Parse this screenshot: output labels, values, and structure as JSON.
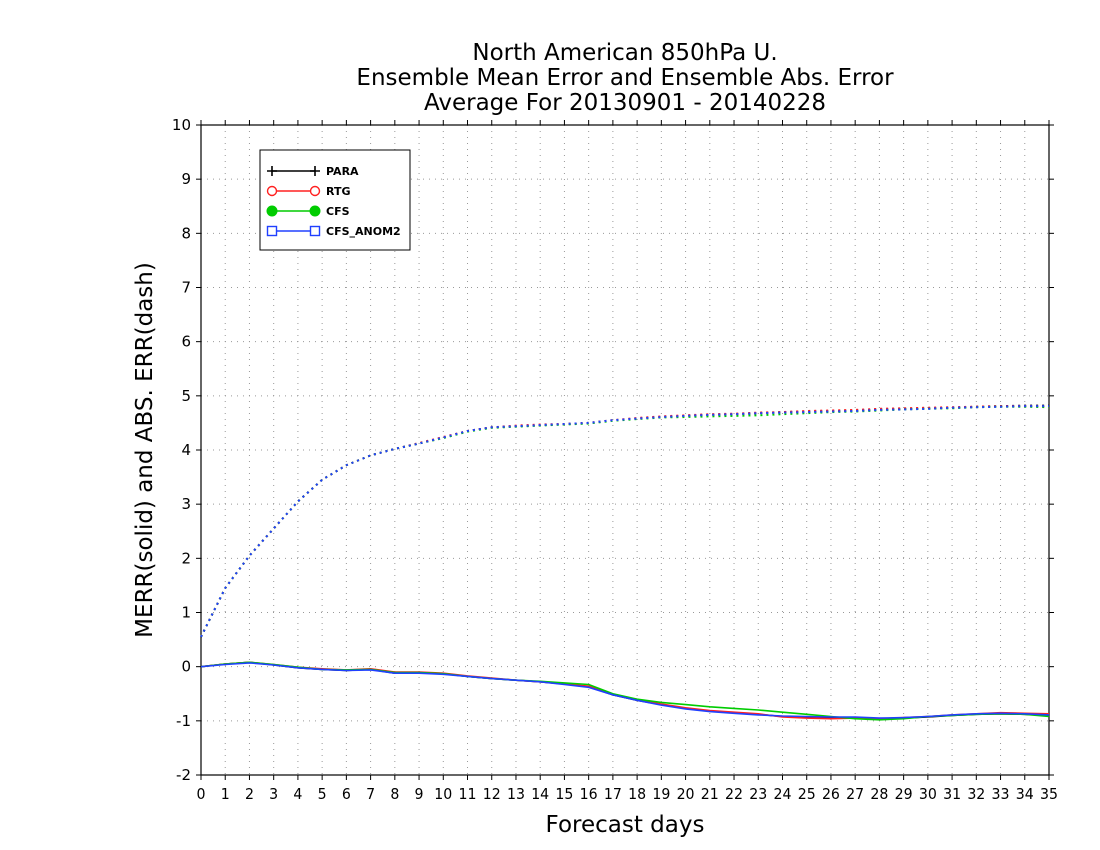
{
  "chart_data": {
    "type": "line",
    "title": [
      "North American 850hPa U.",
      "Ensemble Mean Error and Ensemble Abs. Error",
      "Average For 20130901 - 20140228"
    ],
    "xlabel": "Forecast days",
    "ylabel": "MERR(solid) and ABS. ERR(dash)",
    "xlim": [
      0,
      35
    ],
    "ylim": [
      -2,
      10
    ],
    "xticks": [
      0,
      1,
      2,
      3,
      4,
      5,
      6,
      7,
      8,
      9,
      10,
      11,
      12,
      13,
      14,
      15,
      16,
      17,
      18,
      19,
      20,
      21,
      22,
      23,
      24,
      25,
      26,
      27,
      28,
      29,
      30,
      31,
      32,
      33,
      34,
      35
    ],
    "yticks": [
      -2,
      -1,
      0,
      1,
      2,
      3,
      4,
      5,
      6,
      7,
      8,
      9,
      10
    ],
    "grid": true,
    "legend_position": "top-left",
    "x": [
      0,
      1,
      2,
      3,
      4,
      5,
      6,
      7,
      8,
      9,
      10,
      11,
      12,
      13,
      14,
      15,
      16,
      17,
      18,
      19,
      20,
      21,
      22,
      23,
      24,
      25,
      26,
      27,
      28,
      29,
      30,
      31,
      32,
      33,
      34,
      35
    ],
    "series": [
      {
        "name": "PARA",
        "color": "#000000",
        "marker": "plus",
        "merr": [
          0.0,
          0.05,
          0.08,
          0.03,
          -0.02,
          -0.05,
          -0.07,
          -0.05,
          -0.12,
          -0.11,
          -0.13,
          -0.18,
          -0.22,
          -0.25,
          -0.28,
          -0.32,
          -0.37,
          -0.52,
          -0.62,
          -0.7,
          -0.77,
          -0.82,
          -0.85,
          -0.88,
          -0.92,
          -0.93,
          -0.95,
          -0.95,
          -0.97,
          -0.95,
          -0.93,
          -0.9,
          -0.88,
          -0.87,
          -0.88,
          -0.9
        ],
        "abserr": [
          0.55,
          1.45,
          2.05,
          2.55,
          3.05,
          3.45,
          3.72,
          3.9,
          4.02,
          4.12,
          4.23,
          4.35,
          4.42,
          4.44,
          4.46,
          4.48,
          4.5,
          4.55,
          4.58,
          4.61,
          4.63,
          4.65,
          4.66,
          4.68,
          4.7,
          4.71,
          4.72,
          4.73,
          4.75,
          4.76,
          4.77,
          4.78,
          4.8,
          4.81,
          4.82,
          4.82
        ]
      },
      {
        "name": "RTG",
        "color": "#ff2020",
        "marker": "circle",
        "merr": [
          0.0,
          0.05,
          0.08,
          0.04,
          -0.01,
          -0.04,
          -0.06,
          -0.04,
          -0.1,
          -0.1,
          -0.12,
          -0.17,
          -0.21,
          -0.25,
          -0.28,
          -0.32,
          -0.36,
          -0.51,
          -0.61,
          -0.69,
          -0.76,
          -0.81,
          -0.84,
          -0.87,
          -0.93,
          -0.95,
          -0.96,
          -0.95,
          -0.96,
          -0.94,
          -0.92,
          -0.89,
          -0.87,
          -0.85,
          -0.86,
          -0.87
        ],
        "abserr": [
          0.55,
          1.45,
          2.05,
          2.55,
          3.05,
          3.45,
          3.72,
          3.9,
          4.02,
          4.13,
          4.24,
          4.35,
          4.42,
          4.45,
          4.47,
          4.48,
          4.5,
          4.55,
          4.59,
          4.62,
          4.64,
          4.66,
          4.67,
          4.69,
          4.7,
          4.72,
          4.73,
          4.74,
          4.76,
          4.77,
          4.78,
          4.79,
          4.8,
          4.81,
          4.81,
          4.8
        ]
      },
      {
        "name": "CFS",
        "color": "#00cc00",
        "marker": "filled-circle",
        "merr": [
          0.0,
          0.05,
          0.08,
          0.04,
          -0.01,
          -0.05,
          -0.06,
          -0.05,
          -0.11,
          -0.11,
          -0.13,
          -0.18,
          -0.22,
          -0.25,
          -0.27,
          -0.3,
          -0.33,
          -0.5,
          -0.6,
          -0.66,
          -0.7,
          -0.74,
          -0.77,
          -0.8,
          -0.84,
          -0.88,
          -0.92,
          -0.96,
          -0.98,
          -0.96,
          -0.92,
          -0.9,
          -0.88,
          -0.87,
          -0.88,
          -0.92
        ],
        "abserr": [
          0.55,
          1.45,
          2.05,
          2.55,
          3.05,
          3.45,
          3.72,
          3.9,
          4.02,
          4.12,
          4.22,
          4.34,
          4.41,
          4.43,
          4.45,
          4.47,
          4.49,
          4.54,
          4.57,
          4.6,
          4.61,
          4.62,
          4.63,
          4.64,
          4.66,
          4.68,
          4.7,
          4.71,
          4.73,
          4.75,
          4.76,
          4.77,
          4.79,
          4.8,
          4.8,
          4.79
        ]
      },
      {
        "name": "CFS_ANOM2",
        "color": "#2040ff",
        "marker": "square",
        "merr": [
          0.0,
          0.04,
          0.07,
          0.03,
          -0.02,
          -0.05,
          -0.07,
          -0.06,
          -0.12,
          -0.12,
          -0.14,
          -0.18,
          -0.22,
          -0.25,
          -0.28,
          -0.33,
          -0.38,
          -0.52,
          -0.62,
          -0.71,
          -0.78,
          -0.83,
          -0.86,
          -0.89,
          -0.91,
          -0.92,
          -0.93,
          -0.93,
          -0.95,
          -0.94,
          -0.92,
          -0.89,
          -0.87,
          -0.86,
          -0.87,
          -0.89
        ],
        "abserr": [
          0.55,
          1.45,
          2.05,
          2.55,
          3.05,
          3.45,
          3.72,
          3.9,
          4.02,
          4.12,
          4.23,
          4.35,
          4.42,
          4.44,
          4.46,
          4.48,
          4.5,
          4.55,
          4.58,
          4.61,
          4.63,
          4.65,
          4.66,
          4.68,
          4.69,
          4.7,
          4.71,
          4.72,
          4.74,
          4.75,
          4.76,
          4.78,
          4.79,
          4.8,
          4.81,
          4.81
        ]
      }
    ]
  }
}
